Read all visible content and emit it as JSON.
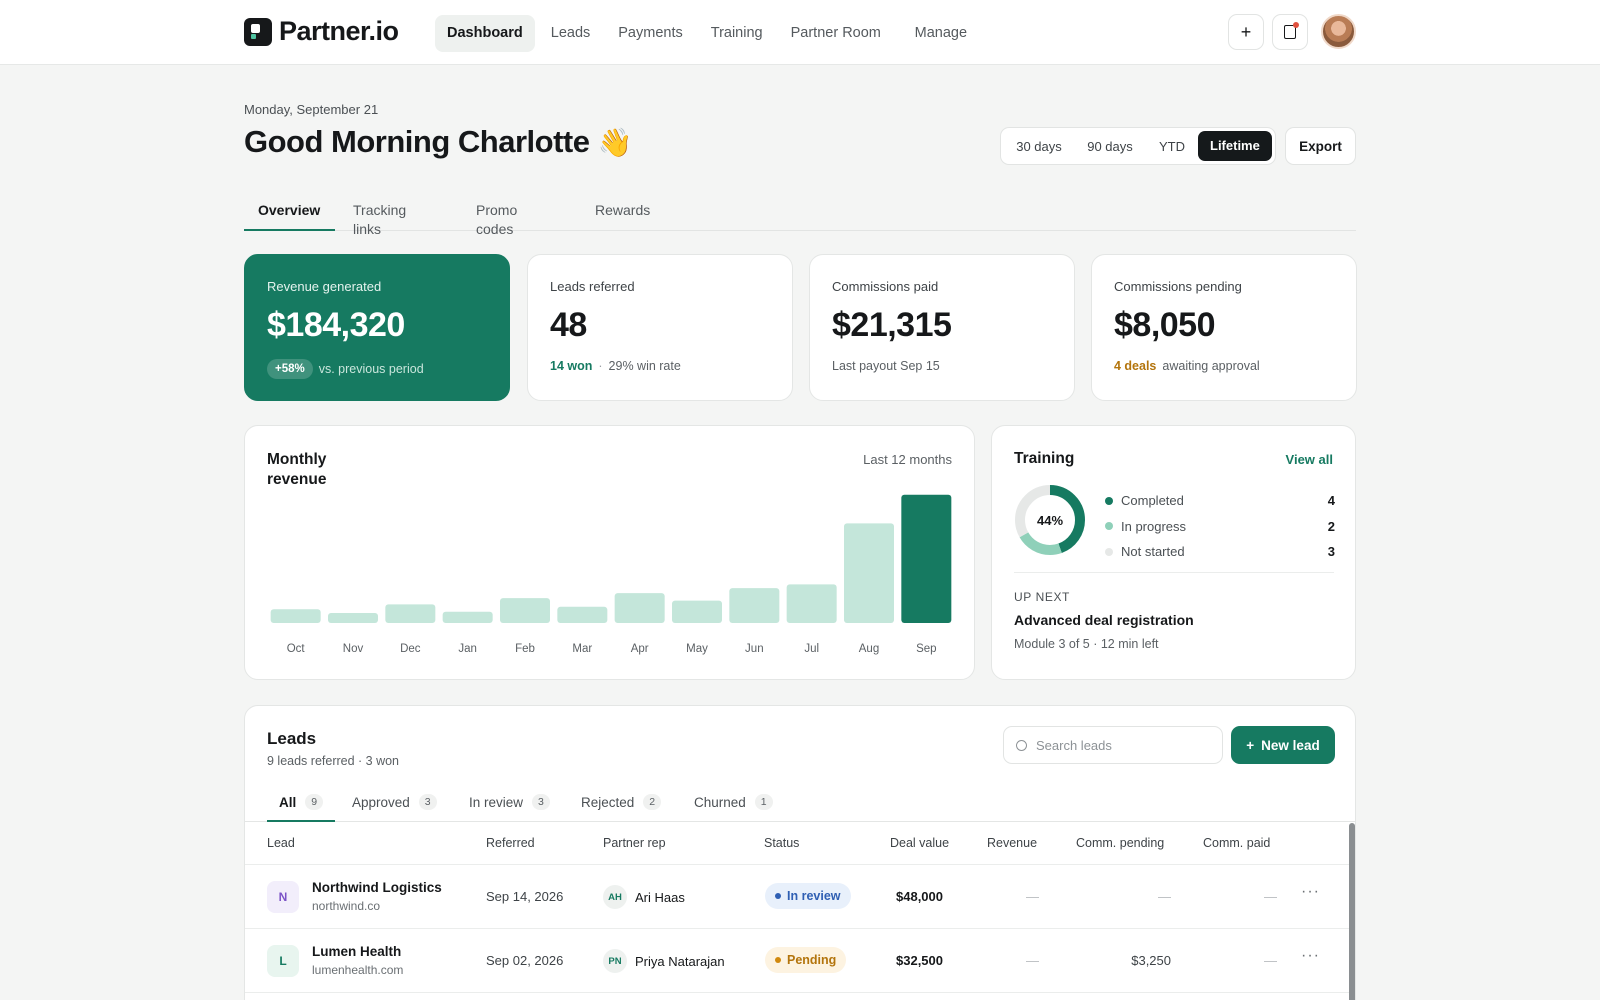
{
  "app": {
    "logo_text": "Partner.io",
    "nav": [
      "Dashboard",
      "Leads",
      "Payments",
      "Training",
      "Partner Room",
      "Manage"
    ],
    "active_nav": "Dashboard",
    "plus_label": "+"
  },
  "greeting": {
    "date": "Monday, September 21",
    "title": "Good Morning Charlotte",
    "emoji": "👋"
  },
  "range": {
    "options": [
      "30 days",
      "90 days",
      "YTD",
      "Lifetime"
    ],
    "selected": "Lifetime",
    "export_label": "Export"
  },
  "tabs": [
    "Overview",
    "Tracking links",
    "Promo codes",
    "Rewards"
  ],
  "kpis": {
    "revenue": {
      "label": "Revenue generated",
      "value": "$184,320",
      "badge": "+58%",
      "foot": "vs. previous period"
    },
    "leads": {
      "label": "Leads referred",
      "value": "48",
      "won": "14 won",
      "sep": "·",
      "rate": "29% win rate"
    },
    "paid": {
      "label": "Commissions paid",
      "value": "$21,315",
      "foot": "Last payout Sep 15"
    },
    "pending": {
      "label": "Commissions pending",
      "value": "$8,050",
      "deals": "4 deals",
      "foot": "awaiting approval"
    }
  },
  "revenue_chart": {
    "title": "Monthly revenue",
    "range": "Last 12 months"
  },
  "chart_data": {
    "type": "bar",
    "title": "Monthly revenue",
    "categories": [
      "Oct",
      "Nov",
      "Dec",
      "Jan",
      "Feb",
      "Mar",
      "Apr",
      "May",
      "Jun",
      "Jul",
      "Aug",
      "Sep"
    ],
    "values": [
      11,
      8,
      15,
      9,
      20,
      13,
      24,
      18,
      28,
      31,
      80,
      103
    ],
    "ylim": [
      0,
      110
    ],
    "highlight_index": 11,
    "colors": {
      "bar": "#c4e6da",
      "highlight": "#167a61"
    },
    "grid": false
  },
  "training": {
    "title": "Training",
    "view_all": "View all",
    "percent_label": "44%",
    "completion_fraction": 0.44,
    "legend": [
      {
        "label": "Completed",
        "value": "4",
        "color": "#167a61"
      },
      {
        "label": "In progress",
        "value": "2",
        "color": "#8fd0b9"
      },
      {
        "label": "Not started",
        "value": "3",
        "color": "#e6e8e7"
      }
    ],
    "up_next_label": "UP NEXT",
    "up_next_title": "Advanced deal registration",
    "up_next_sub": "Module 3 of 5 · 12 min left"
  },
  "leads": {
    "title": "Leads",
    "subtitle": "9 leads referred · 3 won",
    "search_placeholder": "Search leads",
    "new_lead_label": "New lead",
    "tabs": [
      {
        "label": "All",
        "count": "9"
      },
      {
        "label": "Approved",
        "count": "3"
      },
      {
        "label": "In review",
        "count": "3"
      },
      {
        "label": "Rejected",
        "count": "2"
      },
      {
        "label": "Churned",
        "count": "1"
      }
    ],
    "columns": [
      "Lead",
      "Referred",
      "Partner rep",
      "Status",
      "Deal value",
      "Revenue",
      "Comm. pending",
      "Comm. paid"
    ],
    "rows": [
      {
        "initial": "N",
        "name": "Northwind Logistics",
        "domain": "northwind.co",
        "referred": "Sep 14, 2026",
        "rep_initials": "AH",
        "rep": "Ari Haas",
        "status": "In review",
        "deal_value": "$48,000",
        "revenue": "—",
        "comm_pending": "—",
        "comm_paid": "—"
      },
      {
        "initial": "L",
        "name": "Lumen Health",
        "domain": "lumenhealth.com",
        "referred": "Sep 02, 2026",
        "rep_initials": "PN",
        "rep": "Priya Natarajan",
        "status": "Pending",
        "deal_value": "$32,500",
        "revenue": "—",
        "comm_pending": "$3,250",
        "comm_paid": "—"
      }
    ],
    "more_label": "···"
  }
}
